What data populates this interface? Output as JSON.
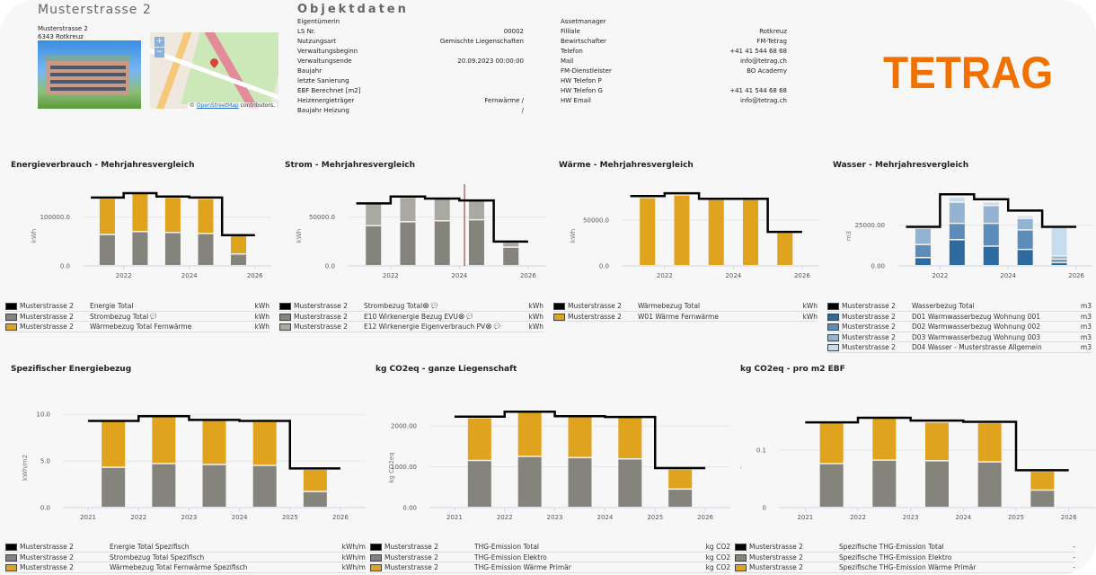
{
  "header": {
    "title": "Musterstrasse 2",
    "address_line1": "Musterstrasse 2",
    "address_line2": "6343 Rotkreuz",
    "map_attribution_prefix": "© ",
    "map_attribution_link": "OpenStreetMap",
    "map_attribution_suffix": " contributors,",
    "map_zoom_in": "+",
    "map_zoom_out": "−",
    "logo": "TETRAG"
  },
  "objektdaten": {
    "title": "Objektdaten",
    "left": [
      {
        "label": "Eigentümerin",
        "value": ""
      },
      {
        "label": "LS Nr.",
        "value": "00002"
      },
      {
        "label": "Nutzungsart",
        "value": "Gemischte Liegenschaften"
      },
      {
        "label": "Verwaltungsbeginn",
        "value": ""
      },
      {
        "label": "Verwaltungsende",
        "value": "20.09.2023 00:00:00"
      },
      {
        "label": "Baujahr",
        "value": ""
      },
      {
        "label": "letzte Sanierung",
        "value": ""
      },
      {
        "label": "EBF Berechnet [m2]",
        "value": ""
      },
      {
        "label": "Heizenergieträger",
        "value": "Fernwärme /"
      },
      {
        "label": "Baujahr Heizung",
        "value": "/"
      }
    ],
    "right": [
      {
        "label": "Assetmanager",
        "value": ""
      },
      {
        "label": "Filliale",
        "value": "Rotkreuz"
      },
      {
        "label": "Bewirtschafter",
        "value": "FM-Tetrag"
      },
      {
        "label": "Telefon",
        "value": "+41 41 544 68 68"
      },
      {
        "label": "Mail",
        "value": "info@tetrag.ch"
      },
      {
        "label": "FM-Dienstleister",
        "value": "BO Academy"
      },
      {
        "label": "HW Telefon P",
        "value": ""
      },
      {
        "label": "HW Telefon G",
        "value": "+41 41 544 68 68"
      },
      {
        "label": "HW Email",
        "value": "info@tetrag.ch"
      }
    ]
  },
  "chart_data": [
    {
      "id": "energie",
      "type": "bar",
      "stacked": true,
      "title": "Energieverbrauch - Mehrjahresvergleich",
      "ylabel": "kWh",
      "ylim": [
        0,
        160000
      ],
      "yticks": [
        0,
        100000
      ],
      "ytick_labels": [
        "0.0",
        "100000.0"
      ],
      "xlim": [
        2020.75,
        2026.5
      ],
      "xticks": [
        2022,
        2024,
        2026
      ],
      "categories": [
        "2021",
        "2022",
        "2023",
        "2024",
        "2025"
      ],
      "series": [
        {
          "name": "Strombezug Total",
          "type": "bar",
          "color": "#85847c",
          "values": [
            64000,
            70000,
            68000,
            66000,
            24000
          ]
        },
        {
          "name": "Wärmebezug Total Fernwärme",
          "type": "bar",
          "color": "#e0a31e",
          "values": [
            74000,
            78000,
            72000,
            71000,
            38000
          ]
        },
        {
          "name": "Energie Total",
          "type": "step",
          "color": "#000000",
          "values": [
            140000,
            149000,
            142000,
            140000,
            63000
          ]
        }
      ],
      "legend": [
        {
          "object": "Musterstrasse 2",
          "name": "Energie Total",
          "unit": "kWh",
          "color": "#000000",
          "note": false,
          "remove": false
        },
        {
          "object": "Musterstrasse 2",
          "name": "Strombezug Total",
          "unit": "kWh",
          "color": "#85847c",
          "note": true,
          "remove": false
        },
        {
          "object": "Musterstrasse 2",
          "name": "Wärmebezug Total Fernwärme",
          "unit": "kWh",
          "color": "#e0a31e",
          "note": false,
          "remove": false
        }
      ]
    },
    {
      "id": "strom",
      "type": "bar",
      "stacked": true,
      "title": "Strom - Mehrjahresvergleich",
      "ylabel": "kWh",
      "ylim": [
        0,
        80000
      ],
      "yticks": [
        0,
        50000
      ],
      "ytick_labels": [
        "0.0",
        "50000.0"
      ],
      "xlim": [
        2020.75,
        2026.5
      ],
      "xticks": [
        2022,
        2024,
        2026
      ],
      "categories": [
        "2021",
        "2022",
        "2023",
        "2024",
        "2025"
      ],
      "marker_line_x": 2024.15,
      "marker_line_color": "#b86a6a",
      "series": [
        {
          "name": "E10 Wirkenergie Bezug EVU",
          "type": "bar",
          "color": "#85847c",
          "values": [
            41000,
            45000,
            46000,
            47000,
            19000
          ]
        },
        {
          "name": "E12 Wirkenergie Eigenverbrauch PV",
          "type": "bar",
          "color": "#a9a8a2",
          "values": [
            23000,
            25000,
            23000,
            20000,
            5000
          ]
        },
        {
          "name": "Strombezug Total",
          "type": "step",
          "color": "#000000",
          "values": [
            64000,
            71000,
            69000,
            67000,
            25000
          ]
        }
      ],
      "legend": [
        {
          "object": "Musterstrasse 2",
          "name": "Strombezug Total",
          "unit": "kWh",
          "color": "#000000",
          "note": true,
          "remove": true
        },
        {
          "object": "Musterstrasse 2",
          "name": "E10 Wirkenergie Bezug EVU",
          "unit": "kWh",
          "color": "#85847c",
          "note": true,
          "remove": true
        },
        {
          "object": "Musterstrasse 2",
          "name": "E12 Wirkenergie Eigenverbrauch PV",
          "unit": "kWh",
          "color": "#a9a8a2",
          "note": true,
          "remove": true
        }
      ]
    },
    {
      "id": "waerme",
      "type": "bar",
      "stacked": true,
      "title": "Wärme - Mehrjahresvergleich",
      "ylabel": "kWh",
      "ylim": [
        0,
        85000
      ],
      "yticks": [
        0,
        50000
      ],
      "ytick_labels": [
        "0.0",
        "50000.0"
      ],
      "xlim": [
        2020.75,
        2026.5
      ],
      "xticks": [
        2022,
        2024,
        2026
      ],
      "categories": [
        "2021",
        "2022",
        "2023",
        "2024",
        "2025"
      ],
      "series": [
        {
          "name": "W01 Wärme Fernwärme",
          "type": "bar",
          "color": "#e0a31e",
          "values": [
            74000,
            77000,
            72000,
            72000,
            36000
          ]
        },
        {
          "name": "Wärmebezug Total",
          "type": "step",
          "color": "#000000",
          "values": [
            76000,
            79000,
            73000,
            73000,
            37000
          ]
        }
      ],
      "legend": [
        {
          "object": "Musterstrasse 2",
          "name": "Wärmebezug Total",
          "unit": "kWh",
          "color": "#000000",
          "note": false,
          "remove": false
        },
        {
          "object": "Musterstrasse 2",
          "name": "W01 Wärme Fernwärme",
          "unit": "kWh",
          "color": "#e0a31e",
          "note": false,
          "remove": false
        }
      ]
    },
    {
      "id": "wasser",
      "type": "bar",
      "stacked": true,
      "title": "Wasser - Mehrjahresvergleich",
      "ylabel": "m3",
      "ylim": [
        0,
        48000
      ],
      "yticks": [
        0,
        25000
      ],
      "ytick_labels": [
        "0.00",
        "25000.00"
      ],
      "xlim": [
        2020.75,
        2026.5
      ],
      "xticks": [
        2022,
        2024,
        2026
      ],
      "categories": [
        "2021",
        "2022",
        "2023",
        "2024",
        "2025"
      ],
      "series": [
        {
          "name": "D01 Warmwasserbezug Wohnung 001",
          "type": "bar",
          "color": "#2d6a9f",
          "values": [
            5000,
            16000,
            12000,
            10000,
            2000
          ]
        },
        {
          "name": "D02 Warmwasserbezug Wohnung 002",
          "type": "bar",
          "color": "#5b8cba",
          "values": [
            8000,
            10000,
            14000,
            12000,
            2000
          ]
        },
        {
          "name": "D03 Warmwasserbezug Wohnung 003",
          "type": "bar",
          "color": "#93b3d2",
          "values": [
            10000,
            13000,
            11000,
            7000,
            2000
          ]
        },
        {
          "name": "D04 Wasser - Musterstrasse Allgemein",
          "type": "bar",
          "color": "#c8dcef",
          "values": [
            0,
            3000,
            2000,
            1500,
            18000
          ]
        },
        {
          "name": "Wasserbezug Total",
          "type": "step",
          "color": "#000000",
          "values": [
            24000,
            44000,
            41000,
            34000,
            24000
          ]
        }
      ],
      "legend": [
        {
          "object": "Musterstrasse 2",
          "name": "Wasserbezug Total",
          "unit": "m3",
          "color": "#000000",
          "note": false,
          "remove": false
        },
        {
          "object": "Musterstrasse 2",
          "name": "D01 Warmwasserbezug Wohnung 001",
          "unit": "m3",
          "color": "#2d6a9f",
          "note": false,
          "remove": false
        },
        {
          "object": "Musterstrasse 2",
          "name": "D02 Warmwasserbezug Wohnung 002",
          "unit": "m3",
          "color": "#5b8cba",
          "note": false,
          "remove": false
        },
        {
          "object": "Musterstrasse 2",
          "name": "D03 Warmwasserbezug Wohnung 003",
          "unit": "m3",
          "color": "#93b3d2",
          "note": false,
          "remove": false
        },
        {
          "object": "Musterstrasse 2",
          "name": "D04 Wasser - Musterstrasse Allgemein",
          "unit": "m3",
          "color": "#c8dcef",
          "note": false,
          "remove": false
        }
      ]
    },
    {
      "id": "spez",
      "type": "bar",
      "stacked": true,
      "title": "Spezifischer Energiebezug",
      "ylabel": "kWh/m2",
      "ylim": [
        0,
        10.5
      ],
      "yticks": [
        0,
        5,
        10
      ],
      "ytick_labels": [
        "0.0",
        "5.0",
        "10.0"
      ],
      "xlim": [
        2020.5,
        2026.5
      ],
      "xticks": [
        2021,
        2022,
        2023,
        2024,
        2025,
        2026
      ],
      "categories": [
        "2021",
        "2022",
        "2023",
        "2024",
        "2025"
      ],
      "series": [
        {
          "name": "Strombezug Total Spezifisch",
          "type": "bar",
          "color": "#85847c",
          "values": [
            4.3,
            4.7,
            4.6,
            4.5,
            1.7
          ]
        },
        {
          "name": "Wärmebezug Total Fernwärme Spezifisch",
          "type": "bar",
          "color": "#e0a31e",
          "values": [
            5.0,
            5.1,
            4.8,
            4.7,
            2.4
          ]
        },
        {
          "name": "Energie Total Spezifisch",
          "type": "step",
          "color": "#000000",
          "values": [
            9.3,
            9.8,
            9.4,
            9.3,
            4.2
          ]
        }
      ],
      "legend": [
        {
          "object": "Musterstrasse 2",
          "name": "Energie Total Spezifisch",
          "unit": "kWh/m",
          "color": "#000000",
          "note": false,
          "remove": false
        },
        {
          "object": "Musterstrasse 2",
          "name": "Strombezug Total Spezifisch",
          "unit": "kWh/m",
          "color": "#85847c",
          "note": false,
          "remove": false
        },
        {
          "object": "Musterstrasse 2",
          "name": "Wärmebezug Total Fernwärme Spezifisch",
          "unit": "kWh/m",
          "color": "#e0a31e",
          "note": false,
          "remove": false
        }
      ]
    },
    {
      "id": "co2",
      "type": "bar",
      "stacked": true,
      "title": "kg CO2eq - ganze Liegenschaft",
      "ylabel": "kg CO2eq",
      "ylim": [
        0,
        2400
      ],
      "yticks": [
        0,
        1000,
        2000
      ],
      "ytick_labels": [
        "0.00",
        "1000.00",
        "2000.00"
      ],
      "xlim": [
        2020.5,
        2026.5
      ],
      "xticks": [
        2021,
        2022,
        2023,
        2024,
        2025,
        2026
      ],
      "categories": [
        "2021",
        "2022",
        "2023",
        "2024",
        "2025"
      ],
      "series": [
        {
          "name": "THG-Emission Elektro",
          "type": "bar",
          "color": "#85847c",
          "values": [
            1150,
            1250,
            1220,
            1190,
            450
          ]
        },
        {
          "name": "THG-Emission Wärme Primär",
          "type": "bar",
          "color": "#e0a31e",
          "values": [
            1050,
            1080,
            1010,
            1030,
            490
          ]
        },
        {
          "name": "THG-Emission Total",
          "type": "step",
          "color": "#000000",
          "values": [
            2230,
            2350,
            2240,
            2220,
            970
          ]
        }
      ],
      "legend": [
        {
          "object": "Musterstrasse 2",
          "name": "THG-Emission Total",
          "unit": "kg CO2",
          "color": "#000000",
          "note": false,
          "remove": false
        },
        {
          "object": "Musterstrasse 2",
          "name": "THG-Emission Elektro",
          "unit": "kg CO2",
          "color": "#85847c",
          "note": false,
          "remove": false
        },
        {
          "object": "Musterstrasse 2",
          "name": "THG-Emission Wärme Primär",
          "unit": "kg CO2",
          "color": "#e0a31e",
          "note": false,
          "remove": false
        }
      ]
    },
    {
      "id": "co2m2",
      "type": "bar",
      "stacked": true,
      "title": "kg CO2eq - pro m2 EBF",
      "ylabel": "-",
      "ylim": [
        0,
        0.17
      ],
      "yticks": [
        0,
        0.1
      ],
      "ytick_labels": [
        "0",
        "0.1"
      ],
      "xlim": [
        2020.5,
        2026.5
      ],
      "xticks": [
        2021,
        2022,
        2023,
        2024,
        2025,
        2026
      ],
      "categories": [
        "2021",
        "2022",
        "2023",
        "2024",
        "2025"
      ],
      "series": [
        {
          "name": "Spezifische THG-Emission Elektro",
          "type": "bar",
          "color": "#85847c",
          "values": [
            0.076,
            0.082,
            0.081,
            0.079,
            0.03
          ]
        },
        {
          "name": "Spezifische THG-Emission Wärme Primär",
          "type": "bar",
          "color": "#e0a31e",
          "values": [
            0.071,
            0.074,
            0.067,
            0.068,
            0.033
          ]
        },
        {
          "name": "Spezifische THG-Emission Total",
          "type": "step",
          "color": "#000000",
          "values": [
            0.148,
            0.156,
            0.151,
            0.149,
            0.065
          ]
        }
      ],
      "legend": [
        {
          "object": "Musterstrasse 2",
          "name": "Spezifische THG-Emission Total",
          "unit": "-",
          "color": "#000000",
          "note": false,
          "remove": false
        },
        {
          "object": "Musterstrasse 2",
          "name": "Spezifische THG-Emission Elektro",
          "unit": "-",
          "color": "#85847c",
          "note": false,
          "remove": false
        },
        {
          "object": "Musterstrasse 2",
          "name": "Spezifische THG-Emission Wärme Primär",
          "unit": "-",
          "color": "#e0a31e",
          "note": false,
          "remove": false
        }
      ]
    }
  ]
}
